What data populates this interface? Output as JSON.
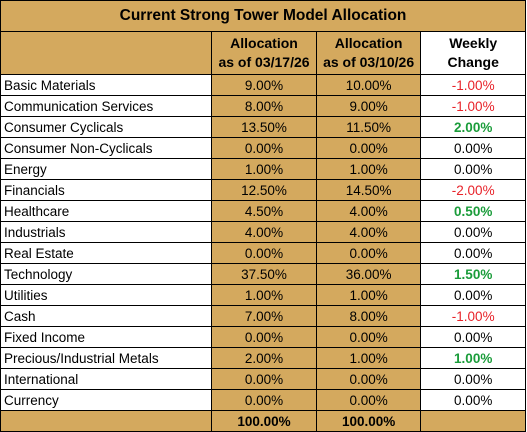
{
  "title": "Current Strong Tower Model Allocation",
  "headers": {
    "col_a": [
      "Allocation",
      "as of 03/17/26"
    ],
    "col_b": [
      "Allocation",
      "as of 03/10/26"
    ],
    "col_c": [
      "Weekly",
      "Change"
    ]
  },
  "rows": [
    {
      "name": "Basic Materials",
      "a": "9.00%",
      "b": "10.00%",
      "c": "-1.00%",
      "dir": "neg"
    },
    {
      "name": "Communication Services",
      "a": "8.00%",
      "b": "9.00%",
      "c": "-1.00%",
      "dir": "neg"
    },
    {
      "name": "Consumer Cyclicals",
      "a": "13.50%",
      "b": "11.50%",
      "c": "2.00%",
      "dir": "pos"
    },
    {
      "name": "Consumer Non-Cyclicals",
      "a": "0.00%",
      "b": "0.00%",
      "c": "0.00%",
      "dir": "zero"
    },
    {
      "name": "Energy",
      "a": "1.00%",
      "b": "1.00%",
      "c": "0.00%",
      "dir": "zero"
    },
    {
      "name": "Financials",
      "a": "12.50%",
      "b": "14.50%",
      "c": "-2.00%",
      "dir": "neg"
    },
    {
      "name": "Healthcare",
      "a": "4.50%",
      "b": "4.00%",
      "c": "0.50%",
      "dir": "pos"
    },
    {
      "name": "Industrials",
      "a": "4.00%",
      "b": "4.00%",
      "c": "0.00%",
      "dir": "zero"
    },
    {
      "name": "Real Estate",
      "a": "0.00%",
      "b": "0.00%",
      "c": "0.00%",
      "dir": "zero"
    },
    {
      "name": "Technology",
      "a": "37.50%",
      "b": "36.00%",
      "c": "1.50%",
      "dir": "pos"
    },
    {
      "name": "Utilities",
      "a": "1.00%",
      "b": "1.00%",
      "c": "0.00%",
      "dir": "zero"
    },
    {
      "name": "Cash",
      "a": "7.00%",
      "b": "8.00%",
      "c": "-1.00%",
      "dir": "neg"
    },
    {
      "name": "Fixed Income",
      "a": "0.00%",
      "b": "0.00%",
      "c": "0.00%",
      "dir": "zero"
    },
    {
      "name": "Precious/Industrial Metals",
      "a": "2.00%",
      "b": "1.00%",
      "c": "1.00%",
      "dir": "pos"
    },
    {
      "name": "International",
      "a": "0.00%",
      "b": "0.00%",
      "c": "0.00%",
      "dir": "zero"
    },
    {
      "name": "Currency",
      "a": "0.00%",
      "b": "0.00%",
      "c": "0.00%",
      "dir": "zero"
    }
  ],
  "totals": {
    "a": "100.00%",
    "b": "100.00%"
  },
  "colors": {
    "gold": "#d4a95e",
    "negative": "#e8232a",
    "positive": "#1a9c3a"
  }
}
